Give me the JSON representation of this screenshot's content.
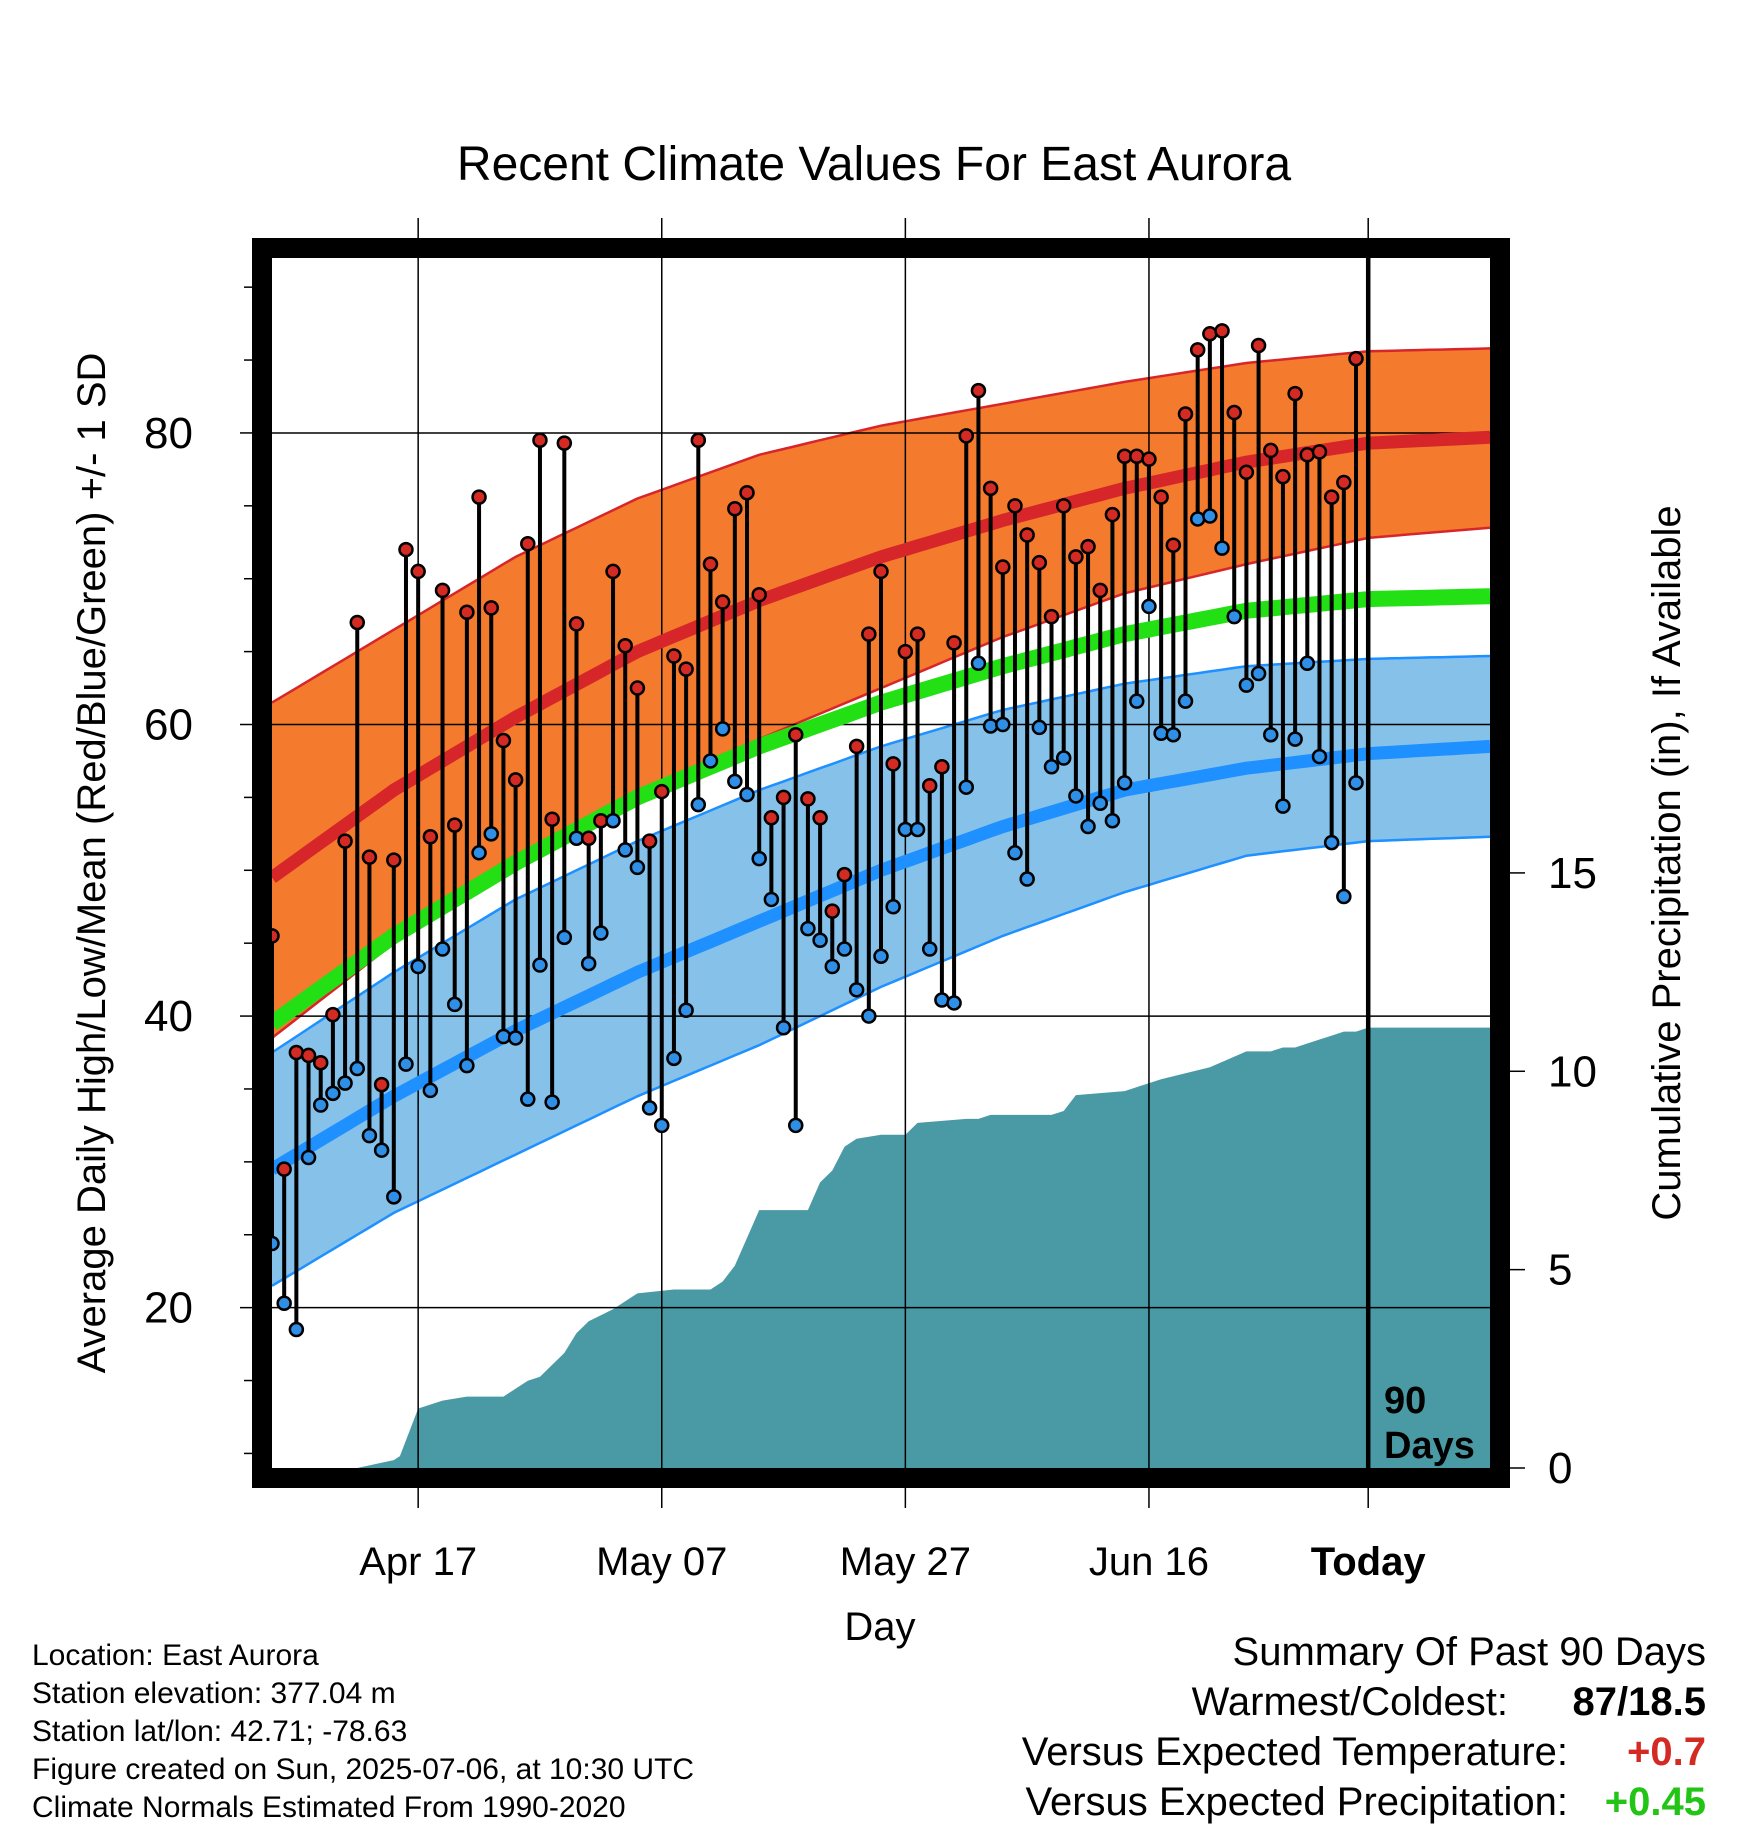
{
  "chart_data": {
    "type": "line",
    "title": "Recent Climate Values For East Aurora",
    "xlabel": "Day",
    "ylabel": "Average Daily High/Low/Mean (Red/Blue/Green) +/- 1 SD",
    "y2label": "Cumulative Precipitation (in), If Available",
    "x_ticks": [
      "Apr 17",
      "May 07",
      "May 27",
      "Jun 16",
      "Today"
    ],
    "ylim": [
      9,
      92
    ],
    "y_ticks": [
      20,
      40,
      60,
      80
    ],
    "y2lim": [
      0,
      30.5
    ],
    "y2_ticks": [
      0,
      5,
      10,
      15
    ],
    "grid": true,
    "today_marker": {
      "day": 90,
      "label_line1": "90",
      "label_line2": "Days"
    },
    "normals": {
      "days": [
        0,
        10,
        20,
        30,
        40,
        50,
        60,
        70,
        80,
        90,
        100
      ],
      "high_mean": [
        49.5,
        55.5,
        60.5,
        65.0,
        68.5,
        71.5,
        74.0,
        76.2,
        78.0,
        79.3,
        79.7
      ],
      "high_sd_upper": [
        61.5,
        66.5,
        71.5,
        75.5,
        78.5,
        80.5,
        82.0,
        83.5,
        84.8,
        85.6,
        85.8
      ],
      "high_sd_lower": [
        38.5,
        45.0,
        50.5,
        55.0,
        59.0,
        62.5,
        66.0,
        69.0,
        71.0,
        72.8,
        73.5
      ],
      "mean": [
        39.5,
        45.5,
        50.5,
        55.0,
        58.5,
        61.5,
        64.0,
        66.2,
        67.8,
        68.6,
        68.8
      ],
      "low_mean": [
        29.5,
        34.5,
        39.0,
        43.0,
        46.5,
        50.0,
        53.0,
        55.5,
        57.0,
        58.0,
        58.5
      ],
      "low_sd_upper": [
        37.5,
        43.0,
        48.0,
        52.0,
        55.5,
        58.5,
        61.0,
        62.8,
        64.0,
        64.5,
        64.7
      ],
      "low_sd_lower": [
        21.5,
        26.5,
        30.5,
        34.5,
        38.0,
        42.0,
        45.5,
        48.5,
        51.0,
        52.0,
        52.3
      ]
    },
    "series": [
      {
        "name": "Daily High",
        "values": [
          45.5,
          29.5,
          37.5,
          37.3,
          36.8,
          40.1,
          52.0,
          67.0,
          50.9,
          35.3,
          50.7,
          72.0,
          70.5,
          52.3,
          69.2,
          53.1,
          67.7,
          75.6,
          68.0,
          58.9,
          56.2,
          72.4,
          79.5,
          53.5,
          79.3,
          66.9,
          52.2,
          53.4,
          70.5,
          65.4,
          62.5,
          52.0,
          55.4,
          64.7,
          63.8,
          79.5,
          71.0,
          68.4,
          74.8,
          75.9,
          68.9,
          53.6,
          55.0,
          59.3,
          54.9,
          53.6,
          47.2,
          49.7,
          58.5,
          66.2,
          70.5,
          57.3,
          65.0,
          66.2,
          55.8,
          57.1,
          65.6,
          79.8,
          82.9,
          76.2,
          70.8,
          75.0,
          73.0,
          71.1,
          67.4,
          75.0,
          71.5,
          72.2,
          69.2,
          74.4,
          78.4,
          78.4,
          78.2,
          75.6,
          72.3,
          81.3,
          85.7,
          86.8,
          87.0,
          81.4,
          77.3,
          86.0,
          78.8,
          77.0,
          82.7,
          78.5,
          78.7,
          75.6,
          76.6,
          85.1
        ]
      },
      {
        "name": "Daily Low",
        "values": [
          24.4,
          20.3,
          18.5,
          30.3,
          33.9,
          34.7,
          35.4,
          36.4,
          31.8,
          30.8,
          27.6,
          36.7,
          43.4,
          34.9,
          44.6,
          40.8,
          36.6,
          51.2,
          52.5,
          38.6,
          38.5,
          34.3,
          43.5,
          34.1,
          45.4,
          52.2,
          43.6,
          45.7,
          53.4,
          51.4,
          50.2,
          33.7,
          32.5,
          37.1,
          40.4,
          54.5,
          57.5,
          59.7,
          56.1,
          55.2,
          50.8,
          48.0,
          39.2,
          32.5,
          46.0,
          45.2,
          43.4,
          44.6,
          41.8,
          40.0,
          44.1,
          47.5,
          52.8,
          52.8,
          44.6,
          41.1,
          40.9,
          55.7,
          64.2,
          59.9,
          60.0,
          51.2,
          49.4,
          59.8,
          57.1,
          57.7,
          55.1,
          53.0,
          54.6,
          53.4,
          56.0,
          61.6,
          68.1,
          59.4,
          59.3,
          61.6,
          74.1,
          74.3,
          72.1,
          67.4,
          62.7,
          63.5,
          59.3,
          54.4,
          59.0,
          64.2,
          57.8,
          51.9,
          48.2,
          56.0
        ]
      },
      {
        "name": "Cumulative Precipitation",
        "days": [
          0,
          7,
          10,
          10.5,
          12,
          14,
          16,
          19,
          21,
          22,
          23,
          24,
          25,
          26,
          28,
          30,
          33,
          36,
          37,
          38,
          40,
          44,
          45,
          46,
          47,
          48,
          50,
          52,
          53,
          57,
          58,
          59,
          62,
          64,
          65,
          66,
          70,
          71,
          73,
          77,
          80,
          81,
          82,
          83,
          84,
          86,
          87,
          88,
          89,
          90,
          100
        ],
        "values": [
          0,
          0,
          0.2,
          0.3,
          1.5,
          1.7,
          1.8,
          1.8,
          2.2,
          2.3,
          2.6,
          2.9,
          3.4,
          3.7,
          4.0,
          4.4,
          4.5,
          4.5,
          4.7,
          5.1,
          6.5,
          6.5,
          7.2,
          7.5,
          8.1,
          8.3,
          8.4,
          8.4,
          8.7,
          8.8,
          8.8,
          8.9,
          8.9,
          8.9,
          9.0,
          9.4,
          9.5,
          9.6,
          9.8,
          10.1,
          10.5,
          10.5,
          10.5,
          10.6,
          10.6,
          10.8,
          10.9,
          11.0,
          11.0,
          11.1,
          11.1
        ]
      }
    ]
  },
  "footer": {
    "location": "Location: East Aurora",
    "elevation": "Station elevation: 377.04 m",
    "latlon": "Station lat/lon: 42.71; -78.63",
    "created": "Figure created on Sun, 2025-07-06, at 10:30 UTC",
    "normals": "Climate Normals Estimated From 1990-2020"
  },
  "summary": {
    "heading": "Summary Of Past 90 Days",
    "warmest_label": "Warmest/Coldest:",
    "warmest_value": "87/18.5",
    "temp_label": "Versus Expected Temperature:",
    "temp_value": "+0.7",
    "precip_label": "Versus Expected Precipitation:",
    "precip_value": "+0.45"
  },
  "colors": {
    "high_band": "#f47a2e",
    "high_line": "#d7262a",
    "low_band": "#85c1e8",
    "low_line": "#1e90ff",
    "mean_line": "#22e014",
    "precip_fill": "#4a9aa5",
    "high_point": "#d42a24",
    "low_point": "#2f8fe6",
    "temp_anom": "#d42a24",
    "precip_anom": "#22c415"
  }
}
